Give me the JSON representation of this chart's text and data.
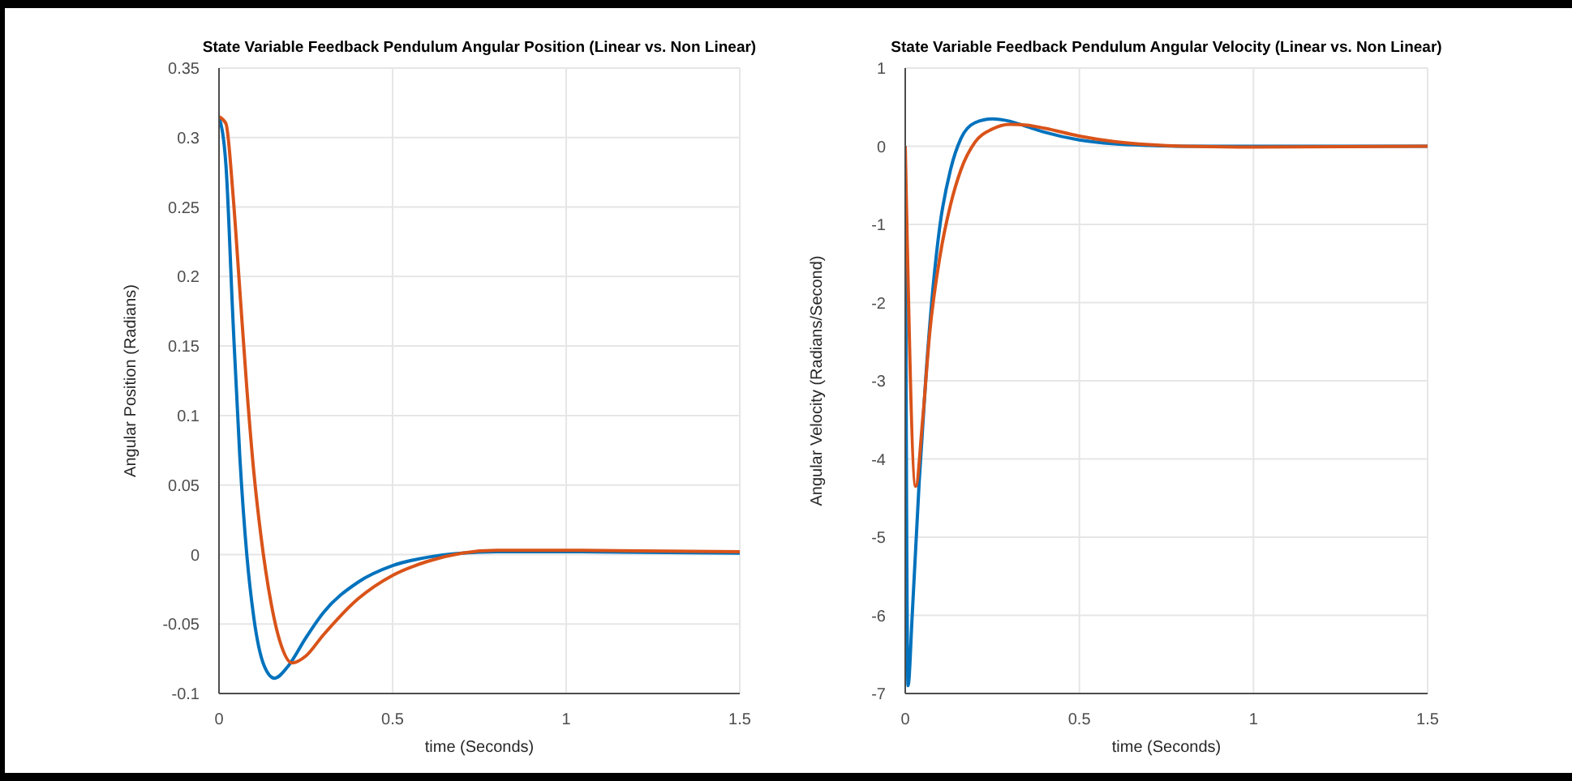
{
  "chart_data": [
    {
      "type": "line",
      "title": "State Variable Feedback Pendulum Angular Position (Linear vs. Non Linear)",
      "xlabel": "time (Seconds)",
      "ylabel": "Angular Position (Radians)",
      "xlim": [
        0,
        1.5
      ],
      "xticks": [
        0,
        0.5,
        1,
        1.5
      ],
      "ylim": [
        -0.1,
        0.35
      ],
      "yticks": [
        -0.1,
        -0.05,
        0,
        0.05,
        0.1,
        0.15,
        0.2,
        0.25,
        0.3,
        0.35
      ],
      "grid": true,
      "line_style": "solid",
      "marker": "none",
      "series": [
        {
          "color": "#0072bd",
          "x": [
            0,
            0.02,
            0.04,
            0.06,
            0.08,
            0.1,
            0.13,
            0.16,
            0.2,
            0.25,
            0.3,
            0.4,
            0.5,
            0.6,
            0.7,
            0.8,
            1,
            1.5
          ],
          "values": [
            0.315,
            0.28,
            0.17,
            0.07,
            0,
            -0.045,
            -0.08,
            -0.089,
            -0.08,
            -0.06,
            -0.042,
            -0.02,
            -0.008,
            -0.002,
            0.001,
            0.002,
            0.002,
            0.001
          ]
        },
        {
          "color": "#d95319",
          "x": [
            0,
            0.02,
            0.04,
            0.06,
            0.08,
            0.1,
            0.12,
            0.15,
            0.18,
            0.21,
            0.25,
            0.3,
            0.4,
            0.5,
            0.6,
            0.7,
            0.8,
            1,
            1.5
          ],
          "values": [
            0.315,
            0.31,
            0.26,
            0.19,
            0.12,
            0.06,
            0.015,
            -0.035,
            -0.066,
            -0.078,
            -0.073,
            -0.058,
            -0.032,
            -0.015,
            -0.005,
            0.001,
            0.003,
            0.003,
            0.002
          ]
        }
      ]
    },
    {
      "type": "line",
      "title": "State Variable Feedback Pendulum Angular Velocity (Linear vs. Non Linear)",
      "xlabel": "time (Seconds)",
      "ylabel": "Angular Velocity (Radians/Second)",
      "xlim": [
        0,
        1.5
      ],
      "xticks": [
        0,
        0.5,
        1,
        1.5
      ],
      "ylim": [
        -7,
        1
      ],
      "yticks": [
        -7,
        -6,
        -5,
        -4,
        -3,
        -2,
        -1,
        0,
        1
      ],
      "grid": true,
      "line_style": "solid",
      "marker": "none",
      "series": [
        {
          "color": "#0072bd",
          "x": [
            0,
            0.008,
            0.02,
            0.04,
            0.06,
            0.08,
            0.1,
            0.13,
            0.16,
            0.2,
            0.25,
            0.3,
            0.35,
            0.4,
            0.5,
            0.6,
            0.7,
            0.8,
            1.5
          ],
          "values": [
            0,
            -6.9,
            -6,
            -4.3,
            -2.9,
            -1.8,
            -1,
            -0.3,
            0.1,
            0.3,
            0.35,
            0.32,
            0.25,
            0.18,
            0.08,
            0.03,
            0.01,
            0,
            0
          ]
        },
        {
          "color": "#d95319",
          "x": [
            0,
            0.03,
            0.05,
            0.07,
            0.1,
            0.13,
            0.16,
            0.2,
            0.25,
            0.3,
            0.35,
            0.4,
            0.5,
            0.6,
            0.7,
            0.8,
            1,
            1.5
          ],
          "values": [
            0,
            -4.35,
            -3.5,
            -2.4,
            -1.4,
            -0.75,
            -0.3,
            0.05,
            0.22,
            0.28,
            0.27,
            0.23,
            0.13,
            0.06,
            0.02,
            0,
            -0.01,
            0
          ]
        }
      ]
    }
  ]
}
